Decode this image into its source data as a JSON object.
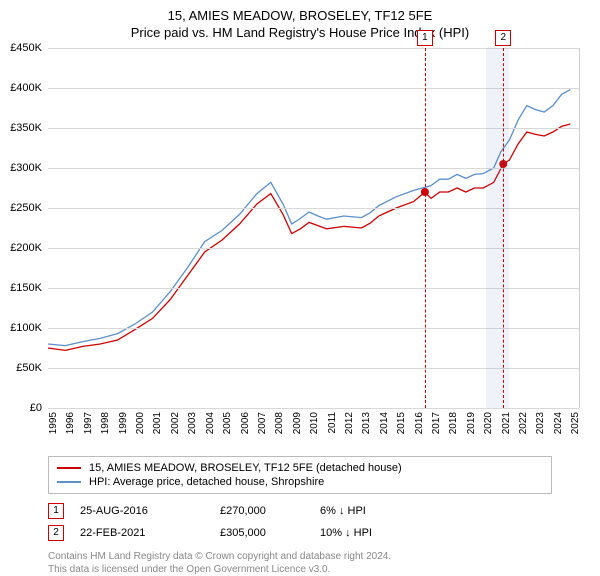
{
  "title": "15, AMIES MEADOW, BROSELEY, TF12 5FE",
  "subtitle": "Price paid vs. HM Land Registry's House Price Index (HPI)",
  "chart": {
    "type": "line",
    "ylim": [
      0,
      450000
    ],
    "ytick_step": 50000,
    "yticks": [
      {
        "v": 0,
        "label": "£0"
      },
      {
        "v": 50000,
        "label": "£50K"
      },
      {
        "v": 100000,
        "label": "£100K"
      },
      {
        "v": 150000,
        "label": "£150K"
      },
      {
        "v": 200000,
        "label": "£200K"
      },
      {
        "v": 250000,
        "label": "£250K"
      },
      {
        "v": 300000,
        "label": "£300K"
      },
      {
        "v": 350000,
        "label": "£350K"
      },
      {
        "v": 400000,
        "label": "£400K"
      },
      {
        "v": 450000,
        "label": "£450K"
      }
    ],
    "xticks": [
      "1995",
      "1996",
      "1997",
      "1998",
      "1999",
      "2000",
      "2001",
      "2002",
      "2003",
      "2004",
      "2005",
      "2006",
      "2007",
      "2008",
      "2009",
      "2010",
      "2011",
      "2012",
      "2013",
      "2014",
      "2015",
      "2016",
      "2017",
      "2018",
      "2019",
      "2020",
      "2021",
      "2022",
      "2023",
      "2024",
      "2025"
    ],
    "xlim": [
      1995,
      2025.5
    ],
    "background_color": "#ffffff",
    "grid_color": "#d8d8d8",
    "shaded_region": {
      "start": 2020.15,
      "end": 2021.5,
      "color": "rgba(100,140,200,0.10)"
    },
    "series": [
      {
        "name": "property",
        "label": "15, AMIES MEADOW, BROSELEY, TF12 5FE (detached house)",
        "color": "#cc0000",
        "line_width": 1.3,
        "points": [
          [
            1995,
            75000
          ],
          [
            1996,
            72000
          ],
          [
            1997,
            77000
          ],
          [
            1998,
            80000
          ],
          [
            1999,
            85000
          ],
          [
            2000,
            98000
          ],
          [
            2001,
            112000
          ],
          [
            2002,
            135000
          ],
          [
            2003,
            165000
          ],
          [
            2004,
            195000
          ],
          [
            2005,
            210000
          ],
          [
            2006,
            230000
          ],
          [
            2007,
            255000
          ],
          [
            2007.8,
            268000
          ],
          [
            2008.5,
            242000
          ],
          [
            2009,
            218000
          ],
          [
            2009.5,
            224000
          ],
          [
            2010,
            232000
          ],
          [
            2010.5,
            228000
          ],
          [
            2011,
            224000
          ],
          [
            2012,
            227000
          ],
          [
            2013,
            225000
          ],
          [
            2013.5,
            231000
          ],
          [
            2014,
            240000
          ],
          [
            2015,
            250000
          ],
          [
            2016,
            258000
          ],
          [
            2016.65,
            270000
          ],
          [
            2017,
            262000
          ],
          [
            2017.5,
            270000
          ],
          [
            2018,
            270000
          ],
          [
            2018.5,
            275000
          ],
          [
            2019,
            270000
          ],
          [
            2019.5,
            275000
          ],
          [
            2020,
            275000
          ],
          [
            2020.6,
            282000
          ],
          [
            2021.15,
            305000
          ],
          [
            2021.5,
            310000
          ],
          [
            2022,
            330000
          ],
          [
            2022.5,
            345000
          ],
          [
            2023,
            342000
          ],
          [
            2023.5,
            340000
          ],
          [
            2024,
            345000
          ],
          [
            2024.5,
            352000
          ],
          [
            2025,
            355000
          ]
        ]
      },
      {
        "name": "hpi",
        "label": "HPI: Average price, detached house, Shropshire",
        "color": "#5b8fc7",
        "line_width": 1.3,
        "points": [
          [
            1995,
            80000
          ],
          [
            1996,
            78000
          ],
          [
            1997,
            83000
          ],
          [
            1998,
            87000
          ],
          [
            1999,
            93000
          ],
          [
            2000,
            105000
          ],
          [
            2001,
            120000
          ],
          [
            2002,
            145000
          ],
          [
            2003,
            175000
          ],
          [
            2004,
            208000
          ],
          [
            2005,
            222000
          ],
          [
            2006,
            242000
          ],
          [
            2007,
            268000
          ],
          [
            2007.8,
            282000
          ],
          [
            2008.5,
            255000
          ],
          [
            2009,
            230000
          ],
          [
            2009.5,
            237000
          ],
          [
            2010,
            245000
          ],
          [
            2010.5,
            240000
          ],
          [
            2011,
            236000
          ],
          [
            2012,
            240000
          ],
          [
            2013,
            238000
          ],
          [
            2013.5,
            244000
          ],
          [
            2014,
            253000
          ],
          [
            2015,
            264000
          ],
          [
            2016,
            272000
          ],
          [
            2017,
            278000
          ],
          [
            2017.5,
            286000
          ],
          [
            2018,
            286000
          ],
          [
            2018.5,
            292000
          ],
          [
            2019,
            287000
          ],
          [
            2019.5,
            292000
          ],
          [
            2020,
            293000
          ],
          [
            2020.6,
            300000
          ],
          [
            2021,
            320000
          ],
          [
            2021.5,
            335000
          ],
          [
            2022,
            360000
          ],
          [
            2022.5,
            378000
          ],
          [
            2023,
            373000
          ],
          [
            2023.5,
            370000
          ],
          [
            2024,
            378000
          ],
          [
            2024.5,
            392000
          ],
          [
            2025,
            398000
          ]
        ]
      }
    ],
    "event_lines": [
      {
        "x": 2016.65,
        "label": "1"
      },
      {
        "x": 2021.15,
        "label": "2"
      }
    ],
    "event_markers": [
      {
        "x": 2016.65,
        "y": 270000,
        "color": "#cc0000"
      },
      {
        "x": 2021.15,
        "y": 305000,
        "color": "#cc0000"
      }
    ]
  },
  "legend": {
    "items": [
      {
        "color": "#cc0000",
        "label": "15, AMIES MEADOW, BROSELEY, TF12 5FE (detached house)"
      },
      {
        "color": "#5b8fc7",
        "label": "HPI: Average price, detached house, Shropshire"
      }
    ]
  },
  "events_table": [
    {
      "n": "1",
      "date": "25-AUG-2016",
      "price": "£270,000",
      "diff": "6% ↓ HPI"
    },
    {
      "n": "2",
      "date": "22-FEB-2021",
      "price": "£305,000",
      "diff": "10% ↓ HPI"
    }
  ],
  "attribution": {
    "line1": "Contains HM Land Registry data © Crown copyright and database right 2024.",
    "line2": "This data is licensed under the Open Government Licence v3.0."
  }
}
